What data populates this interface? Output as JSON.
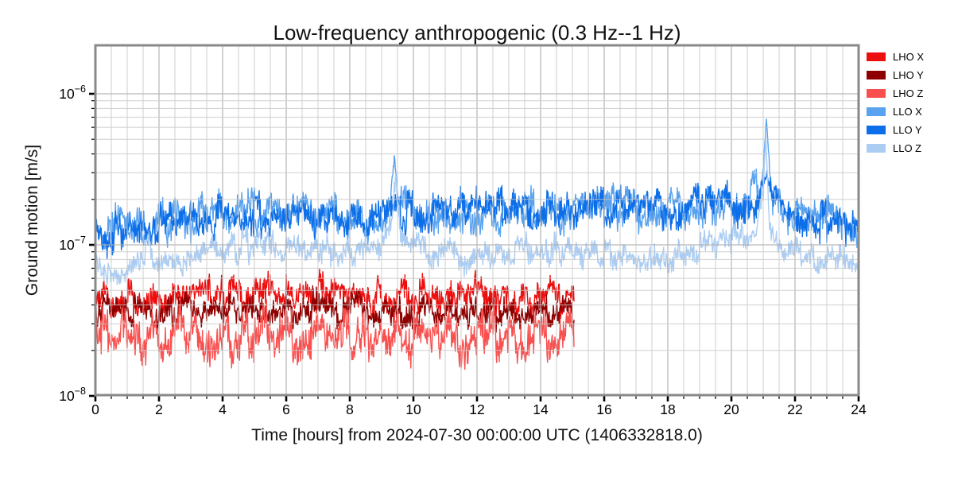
{
  "figure": {
    "title": "Low-frequency anthropogenic (0.3 Hz--1 Hz)",
    "xlabel": "Time [hours] from 2024-07-30 00:00:00 UTC (1406332818.0)",
    "ylabel": "Ground motion [m/s]"
  },
  "chart_data": {
    "type": "line",
    "title": "Low-frequency anthropogenic (0.3 Hz--1 Hz)",
    "xlabel": "Time [hours] from 2024-07-30 00:00:00 UTC (1406332818.0)",
    "ylabel": "Ground motion [m/s]",
    "yscale": "log",
    "xlim": [
      0,
      24
    ],
    "ylim": [
      1e-08,
      2.1e-06
    ],
    "x_ticks": [
      0,
      2,
      4,
      6,
      8,
      10,
      12,
      14,
      16,
      18,
      20,
      22,
      24
    ],
    "y_ticks": [
      {
        "base": "10",
        "exp": "−6",
        "value": 1e-06
      },
      {
        "base": "10",
        "exp": "−7",
        "value": 1e-07
      },
      {
        "base": "10",
        "exp": "−8",
        "value": 1e-08
      }
    ],
    "grid": {
      "major": true,
      "minor": true,
      "above_data": true,
      "color_major": "#adadad",
      "color_minor": "#c7c7c7"
    },
    "frame_color": "#898989",
    "tick_color": "#000000",
    "legend": {
      "position": "outside-right",
      "entries": [
        "LHO X",
        "LHO Y",
        "LHO Z",
        "LLO X",
        "LLO Y",
        "LLO Z"
      ]
    },
    "series": [
      {
        "name": "LHO X",
        "color": "#ed0e0e",
        "noise_dex": 0.095,
        "seed": 3,
        "points": [
          [
            0,
            4.6e-08
          ],
          [
            2,
            4.5e-08
          ],
          [
            4,
            4.7e-08
          ],
          [
            6,
            4.9e-08
          ],
          [
            8,
            4.6e-08
          ],
          [
            10,
            4.6e-08
          ],
          [
            12,
            4.6e-08
          ],
          [
            14,
            4.4e-08
          ],
          [
            15.05,
            4.3e-08
          ]
        ]
      },
      {
        "name": "LHO Y",
        "color": "#8e0000",
        "noise_dex": 0.085,
        "seed": 5,
        "points": [
          [
            0,
            3.7e-08
          ],
          [
            3,
            3.7e-08
          ],
          [
            6,
            3.8e-08
          ],
          [
            9,
            3.6e-08
          ],
          [
            12,
            3.6e-08
          ],
          [
            15.05,
            3.5e-08
          ]
        ]
      },
      {
        "name": "LHO Z",
        "color": "#f9504f",
        "noise_dex": 0.125,
        "seed": 7,
        "points": [
          [
            0,
            2.5e-08
          ],
          [
            3,
            2.5e-08
          ],
          [
            6,
            2.6e-08
          ],
          [
            9,
            2.5e-08
          ],
          [
            12,
            2.4e-08
          ],
          [
            15.05,
            2.4e-08
          ]
        ]
      },
      {
        "name": "LLO X",
        "color": "#58a2ef",
        "noise_dex": 0.105,
        "seed": 11,
        "points": [
          [
            0,
            1.3e-07
          ],
          [
            0.5,
            1.32e-07
          ],
          [
            1,
            1.35e-07
          ],
          [
            1.6,
            1.28e-07
          ],
          [
            2,
            1.4e-07
          ],
          [
            2.5,
            1.45e-07
          ],
          [
            3,
            1.5e-07
          ],
          [
            4,
            1.6e-07
          ],
          [
            5,
            1.62e-07
          ],
          [
            6,
            1.58e-07
          ],
          [
            7,
            1.6e-07
          ],
          [
            8,
            1.55e-07
          ],
          [
            9,
            1.6e-07
          ],
          [
            9.25,
            1.9e-07
          ],
          [
            9.4,
            3.9e-07
          ],
          [
            9.55,
            1.9e-07
          ],
          [
            10,
            1.6e-07
          ],
          [
            11,
            1.6e-07
          ],
          [
            12,
            1.65e-07
          ],
          [
            13,
            1.65e-07
          ],
          [
            14,
            1.7e-07
          ],
          [
            15,
            1.68e-07
          ],
          [
            16,
            1.7e-07
          ],
          [
            17,
            1.72e-07
          ],
          [
            18,
            1.75e-07
          ],
          [
            19,
            1.8e-07
          ],
          [
            20,
            1.85e-07
          ],
          [
            20.6,
            2.1e-07
          ],
          [
            20.75,
            2.4e-07
          ],
          [
            20.9,
            2e-07
          ],
          [
            21.0,
            3.2e-07
          ],
          [
            21.1,
            7.2e-07
          ],
          [
            21.25,
            2.4e-07
          ],
          [
            21.5,
            1.85e-07
          ],
          [
            22,
            1.7e-07
          ],
          [
            22.5,
            1.65e-07
          ],
          [
            23,
            1.55e-07
          ],
          [
            23.5,
            1.45e-07
          ],
          [
            24,
            1.3e-07
          ]
        ]
      },
      {
        "name": "LLO Y",
        "color": "#0c6fe9",
        "noise_dex": 0.105,
        "seed": 13,
        "points": [
          [
            0,
            1.25e-07
          ],
          [
            1,
            1.3e-07
          ],
          [
            2,
            1.38e-07
          ],
          [
            3,
            1.48e-07
          ],
          [
            4,
            1.58e-07
          ],
          [
            5,
            1.58e-07
          ],
          [
            6,
            1.52e-07
          ],
          [
            7,
            1.56e-07
          ],
          [
            8,
            1.52e-07
          ],
          [
            9,
            1.58e-07
          ],
          [
            9.4,
            1.85e-07
          ],
          [
            10,
            1.62e-07
          ],
          [
            11,
            1.65e-07
          ],
          [
            12,
            1.68e-07
          ],
          [
            13,
            1.68e-07
          ],
          [
            14,
            1.72e-07
          ],
          [
            15,
            1.7e-07
          ],
          [
            16,
            1.72e-07
          ],
          [
            17,
            1.72e-07
          ],
          [
            18,
            1.76e-07
          ],
          [
            19,
            1.8e-07
          ],
          [
            20,
            1.85e-07
          ],
          [
            20.7,
            2e-07
          ],
          [
            21.0,
            2.6e-07
          ],
          [
            21.1,
            3.1e-07
          ],
          [
            21.3,
            2.1e-07
          ],
          [
            21.6,
            1.8e-07
          ],
          [
            22,
            1.65e-07
          ],
          [
            23,
            1.5e-07
          ],
          [
            23.5,
            1.4e-07
          ],
          [
            24,
            1.25e-07
          ]
        ]
      },
      {
        "name": "LLO Z",
        "color": "#abcdf4",
        "noise_dex": 0.08,
        "seed": 17,
        "points": [
          [
            0,
            7.2e-08
          ],
          [
            0.5,
            7e-08
          ],
          [
            1,
            7.2e-08
          ],
          [
            1.5,
            7.6e-08
          ],
          [
            1.65,
            1.15e-07
          ],
          [
            1.8,
            8.2e-08
          ],
          [
            2,
            7.4e-08
          ],
          [
            2.5,
            7.6e-08
          ],
          [
            3,
            8e-08
          ],
          [
            3.5,
            8.8e-08
          ],
          [
            4,
            9.5e-08
          ],
          [
            4.5,
            1e-07
          ],
          [
            5,
            1.02e-07
          ],
          [
            5.5,
            1.03e-07
          ],
          [
            6,
            1e-07
          ],
          [
            6.5,
            9.8e-08
          ],
          [
            7,
            9.6e-08
          ],
          [
            7.5,
            9.5e-08
          ],
          [
            8,
            9.3e-08
          ],
          [
            8.5,
            9.5e-08
          ],
          [
            9,
            1e-07
          ],
          [
            9.3,
            1.5e-07
          ],
          [
            9.45,
            2.5e-07
          ],
          [
            9.6,
            1.15e-07
          ],
          [
            10,
            9.2e-08
          ],
          [
            10.5,
            8.8e-08
          ],
          [
            11,
            8.6e-08
          ],
          [
            12,
            8.5e-08
          ],
          [
            13,
            8.8e-08
          ],
          [
            14,
            9e-08
          ],
          [
            14.5,
            9.5e-08
          ],
          [
            15,
            9.2e-08
          ],
          [
            16,
            8.8e-08
          ],
          [
            17,
            8.6e-08
          ],
          [
            18,
            8.8e-08
          ],
          [
            19,
            9.2e-08
          ],
          [
            19.5,
            1.05e-07
          ],
          [
            20,
            1.15e-07
          ],
          [
            20.4,
            1.08e-07
          ],
          [
            20.8,
            1.25e-07
          ],
          [
            21.0,
            2.2e-07
          ],
          [
            21.08,
            5.8e-07
          ],
          [
            21.2,
            1.3e-07
          ],
          [
            21.5,
            9.5e-08
          ],
          [
            22,
            8.5e-08
          ],
          [
            22.5,
            8e-08
          ],
          [
            23,
            7.6e-08
          ],
          [
            23.5,
            7.2e-08
          ],
          [
            24,
            6.6e-08
          ]
        ]
      }
    ]
  }
}
